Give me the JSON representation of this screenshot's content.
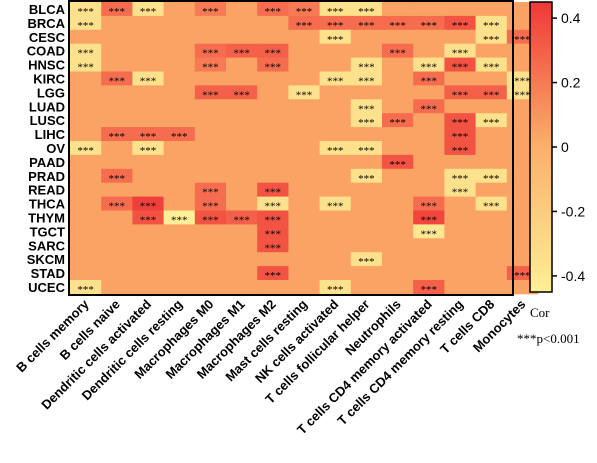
{
  "chart_data": {
    "type": "heatmap",
    "rows": [
      "BLCA",
      "BRCA",
      "CESC",
      "COAD",
      "HNSC",
      "KIRC",
      "LGG",
      "LUAD",
      "LUSC",
      "LIHC",
      "OV",
      "PAAD",
      "PRAD",
      "READ",
      "THCA",
      "THYM",
      "TGCT",
      "SARC",
      "SKCM",
      "STAD",
      "UCEC"
    ],
    "columns": [
      "B cells memory",
      "B cells naive",
      "Dendritic cells activated",
      "Dendritic cells resting",
      "Macrophages M0",
      "Macrophages M1",
      "Macrophages M2",
      "Mast cells resting",
      "NK cells activated",
      "T cells follicular helper",
      "Neutrophils",
      "T cells CD4 memory activated",
      "T cells CD4 memory resting",
      "T cells CD8",
      "Monocytes"
    ],
    "values": [
      [
        -0.35,
        0.25,
        -0.35,
        0.05,
        0.2,
        0.05,
        0.25,
        0.2,
        -0.35,
        -0.35,
        0.05,
        0.05,
        0.05,
        0.05,
        0.05
      ],
      [
        -0.35,
        0.05,
        0.05,
        0.05,
        0.05,
        0.05,
        0.05,
        0.25,
        0.25,
        0.25,
        0.25,
        0.25,
        0.35,
        -0.35,
        0.05
      ],
      [
        0.05,
        0.05,
        0.05,
        0.05,
        0.05,
        0.05,
        0.05,
        0.05,
        -0.35,
        0.05,
        0.05,
        0.05,
        0.05,
        -0.35,
        0.25
      ],
      [
        -0.35,
        0.05,
        0.05,
        0.05,
        0.25,
        0.3,
        0.3,
        0.05,
        0.05,
        0.05,
        0.25,
        0.05,
        -0.35,
        0.05,
        0.05
      ],
      [
        -0.35,
        0.05,
        0.05,
        0.05,
        0.2,
        0.05,
        0.25,
        0.05,
        0.05,
        -0.35,
        0.05,
        -0.35,
        0.35,
        -0.35,
        0.05
      ],
      [
        0.05,
        0.25,
        -0.35,
        0.05,
        0.05,
        0.05,
        0.05,
        0.05,
        -0.35,
        -0.35,
        0.05,
        0.25,
        0.05,
        0.05,
        -0.35
      ],
      [
        0.05,
        0.05,
        0.05,
        0.05,
        0.3,
        0.3,
        0.05,
        -0.35,
        0.05,
        0.05,
        0.05,
        0.05,
        0.3,
        0.3,
        -0.35
      ],
      [
        0.05,
        0.05,
        0.05,
        0.05,
        0.05,
        0.05,
        0.05,
        0.05,
        0.05,
        -0.35,
        0.05,
        0.25,
        0.05,
        0.05,
        0.05
      ],
      [
        0.05,
        0.05,
        0.05,
        0.05,
        0.05,
        0.05,
        0.05,
        0.05,
        0.05,
        -0.35,
        0.25,
        0.05,
        0.35,
        -0.35,
        0.05
      ],
      [
        0.05,
        0.25,
        0.25,
        0.25,
        0.05,
        0.05,
        0.05,
        0.05,
        0.05,
        0.05,
        0.05,
        0.05,
        0.35,
        0.05,
        0.05
      ],
      [
        -0.35,
        0.05,
        -0.35,
        0.05,
        0.05,
        0.05,
        0.05,
        0.05,
        -0.35,
        -0.35,
        0.05,
        0.05,
        0.35,
        0.05,
        0.05
      ],
      [
        0.05,
        0.05,
        0.05,
        0.05,
        0.05,
        0.05,
        0.05,
        0.05,
        0.05,
        0.05,
        0.35,
        0.05,
        0.05,
        0.05,
        0.05
      ],
      [
        0.05,
        0.25,
        0.05,
        0.05,
        0.05,
        0.05,
        0.05,
        0.05,
        0.05,
        -0.35,
        0.05,
        0.05,
        -0.35,
        -0.35,
        0.05
      ],
      [
        0.05,
        0.05,
        0.05,
        0.05,
        0.25,
        0.05,
        0.35,
        0.05,
        0.05,
        0.05,
        0.05,
        0.05,
        -0.35,
        0.05,
        0.05
      ],
      [
        0.05,
        0.25,
        0.42,
        0.05,
        0.25,
        0.05,
        -0.35,
        0.05,
        -0.35,
        0.05,
        0.05,
        0.25,
        0.05,
        -0.35,
        0.05
      ],
      [
        0.05,
        0.05,
        0.35,
        -0.45,
        0.35,
        0.3,
        0.35,
        0.05,
        0.05,
        0.05,
        0.05,
        0.4,
        0.05,
        0.05,
        0.05
      ],
      [
        0.05,
        0.05,
        0.05,
        0.05,
        0.05,
        0.05,
        0.35,
        0.05,
        0.05,
        0.05,
        0.05,
        -0.4,
        0.05,
        0.05,
        0.05
      ],
      [
        0.05,
        0.05,
        0.05,
        0.05,
        0.05,
        0.05,
        0.35,
        0.05,
        0.05,
        0.05,
        0.05,
        0.05,
        0.05,
        0.05,
        0.05
      ],
      [
        0.05,
        0.05,
        0.05,
        0.05,
        0.05,
        0.05,
        0.05,
        0.05,
        0.05,
        -0.35,
        0.05,
        0.05,
        0.05,
        0.05,
        0.05
      ],
      [
        0.05,
        0.05,
        0.05,
        0.05,
        0.05,
        0.05,
        0.35,
        0.05,
        0.05,
        0.05,
        0.05,
        0.05,
        0.05,
        0.05,
        0.3
      ],
      [
        -0.35,
        0.05,
        0.05,
        0.05,
        0.05,
        0.05,
        0.05,
        0.05,
        -0.35,
        0.05,
        0.05,
        0.3,
        0.05,
        0.05,
        0.05
      ]
    ],
    "significant": [
      [
        0,
        0
      ],
      [
        0,
        1
      ],
      [
        0,
        2
      ],
      [
        0,
        4
      ],
      [
        0,
        6
      ],
      [
        0,
        7
      ],
      [
        0,
        8
      ],
      [
        0,
        9
      ],
      [
        1,
        0
      ],
      [
        1,
        7
      ],
      [
        1,
        8
      ],
      [
        1,
        9
      ],
      [
        1,
        10
      ],
      [
        1,
        11
      ],
      [
        1,
        12
      ],
      [
        1,
        13
      ],
      [
        2,
        8
      ],
      [
        2,
        13
      ],
      [
        2,
        14
      ],
      [
        3,
        0
      ],
      [
        3,
        4
      ],
      [
        3,
        5
      ],
      [
        3,
        6
      ],
      [
        3,
        10
      ],
      [
        3,
        12
      ],
      [
        4,
        0
      ],
      [
        4,
        4
      ],
      [
        4,
        6
      ],
      [
        4,
        9
      ],
      [
        4,
        11
      ],
      [
        4,
        12
      ],
      [
        4,
        13
      ],
      [
        5,
        1
      ],
      [
        5,
        2
      ],
      [
        5,
        8
      ],
      [
        5,
        9
      ],
      [
        5,
        11
      ],
      [
        5,
        14
      ],
      [
        6,
        4
      ],
      [
        6,
        5
      ],
      [
        6,
        7
      ],
      [
        6,
        12
      ],
      [
        6,
        13
      ],
      [
        6,
        14
      ],
      [
        7,
        9
      ],
      [
        7,
        11
      ],
      [
        8,
        9
      ],
      [
        8,
        10
      ],
      [
        8,
        12
      ],
      [
        8,
        13
      ],
      [
        9,
        1
      ],
      [
        9,
        2
      ],
      [
        9,
        3
      ],
      [
        9,
        12
      ],
      [
        10,
        0
      ],
      [
        10,
        2
      ],
      [
        10,
        8
      ],
      [
        10,
        9
      ],
      [
        10,
        12
      ],
      [
        11,
        10
      ],
      [
        12,
        1
      ],
      [
        12,
        9
      ],
      [
        12,
        12
      ],
      [
        12,
        13
      ],
      [
        13,
        4
      ],
      [
        13,
        6
      ],
      [
        13,
        12
      ],
      [
        14,
        1
      ],
      [
        14,
        2
      ],
      [
        14,
        4
      ],
      [
        14,
        6
      ],
      [
        14,
        8
      ],
      [
        14,
        11
      ],
      [
        14,
        13
      ],
      [
        15,
        2
      ],
      [
        15,
        3
      ],
      [
        15,
        4
      ],
      [
        15,
        5
      ],
      [
        15,
        6
      ],
      [
        15,
        11
      ],
      [
        16,
        6
      ],
      [
        16,
        11
      ],
      [
        17,
        6
      ],
      [
        18,
        9
      ],
      [
        19,
        6
      ],
      [
        19,
        14
      ],
      [
        20,
        0
      ],
      [
        20,
        8
      ],
      [
        20,
        11
      ]
    ],
    "sig_label": "***",
    "legend_title": "Cor",
    "legend_note": "***p<0.001",
    "colorbar_ticks": [
      0.4,
      0.2,
      0,
      -0.2,
      -0.4
    ],
    "colorbar_tick_labels": [
      "0.4",
      "0.2",
      "0",
      "-0.2",
      "-0.4"
    ],
    "color_range": [
      -0.45,
      0.45
    ],
    "colors": {
      "low": "#ffef96",
      "mid": "#fbb06a",
      "high": "#f03838"
    },
    "legend_placement": "right",
    "grid": false
  }
}
